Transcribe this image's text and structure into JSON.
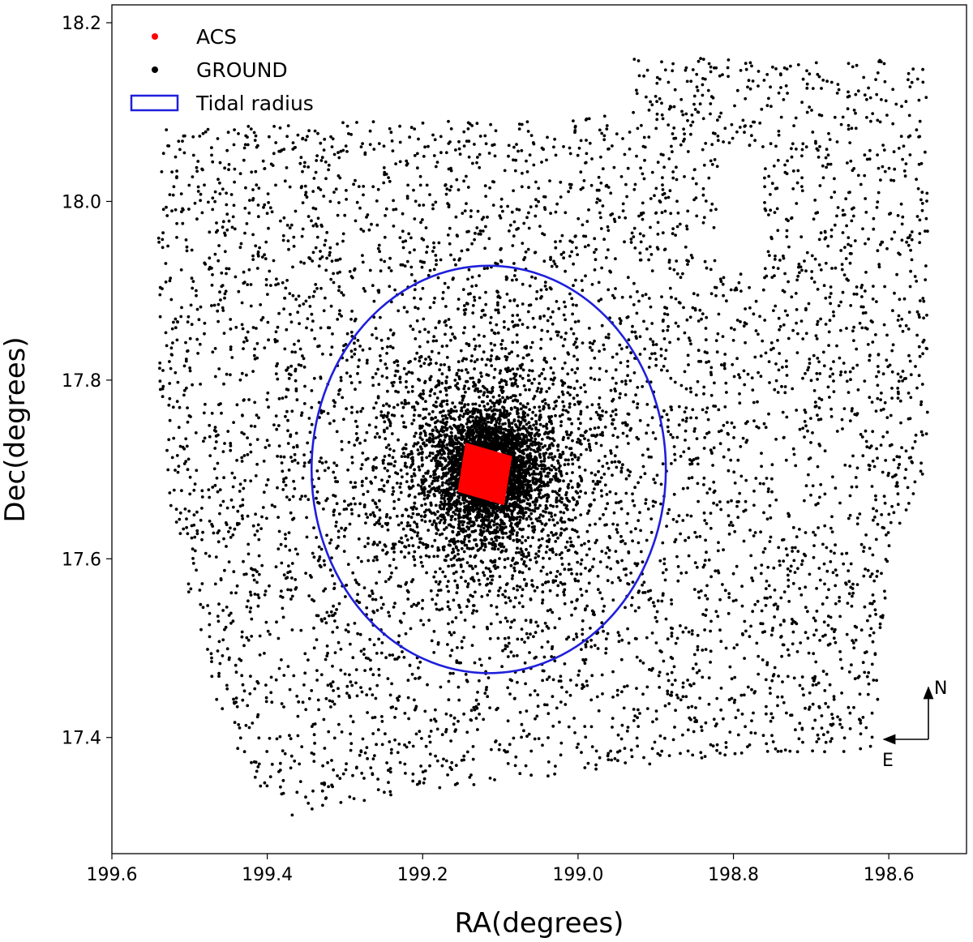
{
  "chart_data": {
    "type": "scatter",
    "title": "",
    "xlabel": "RA(degrees)",
    "ylabel": "Dec(degrees)",
    "xlim": [
      199.6,
      198.5
    ],
    "ylim": [
      17.27,
      18.22
    ],
    "x_inverted": true,
    "xticks": [
      199.6,
      199.4,
      199.2,
      199.0,
      198.8,
      198.6
    ],
    "xtick_labels": [
      "199.6",
      "199.4",
      "199.2",
      "199.0",
      "198.8",
      "198.6"
    ],
    "yticks": [
      17.4,
      17.6,
      17.8,
      18.0,
      18.2
    ],
    "ytick_labels": [
      "17.4",
      "17.6",
      "17.8",
      "18.0",
      "18.2"
    ],
    "grid": false,
    "legend_position": "top-left",
    "legend": [
      {
        "label": "ACS",
        "kind": "point",
        "color": "#ff0000"
      },
      {
        "label": "GROUND",
        "kind": "point",
        "color": "#000000"
      },
      {
        "label": "Tidal radius",
        "kind": "ellipse",
        "color": "#1f1fdc"
      }
    ],
    "series": [
      {
        "name": "GROUND",
        "color": "#000000",
        "point_count_approx": 9000,
        "field_outline": [
          [
            199.54,
            18.08
          ],
          [
            199.27,
            18.09
          ],
          [
            199.02,
            18.09
          ],
          [
            198.93,
            18.1
          ],
          [
            198.93,
            18.16
          ],
          [
            198.55,
            18.16
          ],
          [
            198.55,
            17.7
          ],
          [
            198.6,
            17.6
          ],
          [
            198.62,
            17.38
          ],
          [
            198.8,
            17.38
          ],
          [
            199.0,
            17.36
          ],
          [
            199.2,
            17.34
          ],
          [
            199.38,
            17.31
          ],
          [
            199.45,
            17.39
          ],
          [
            199.52,
            17.62
          ],
          [
            199.54,
            17.8
          ],
          [
            199.54,
            18.08
          ]
        ],
        "field_gap": [
          [
            198.82,
            18.06
          ],
          [
            198.76,
            18.06
          ],
          [
            198.76,
            17.92
          ],
          [
            198.82,
            17.92
          ]
        ],
        "cluster_center": [
          199.115,
          17.7
        ],
        "cluster_core_sigma_deg": [
          0.03,
          0.03
        ],
        "cluster_halo_sigma_deg": [
          0.08,
          0.07
        ]
      },
      {
        "name": "ACS",
        "color": "#ff0000",
        "corners": [
          [
            199.145,
            17.73
          ],
          [
            199.085,
            17.715
          ],
          [
            199.095,
            17.66
          ],
          [
            199.155,
            17.675
          ]
        ]
      }
    ],
    "tidal_radius": {
      "label": "Tidal radius",
      "center": [
        199.115,
        17.7
      ],
      "semi_axis_ra_deg": 0.228,
      "semi_axis_dec_deg": 0.228,
      "color": "#1f1fdc"
    },
    "compass": {
      "north_label": "N",
      "east_label": "E"
    }
  }
}
